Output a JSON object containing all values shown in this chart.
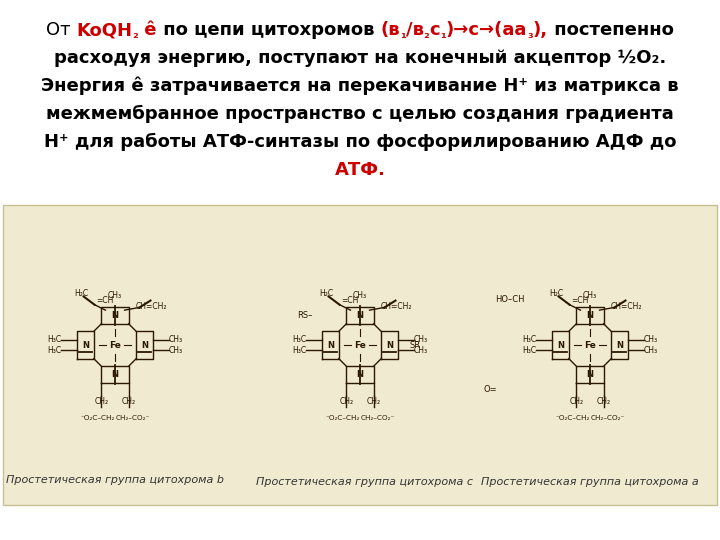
{
  "background_color": "#ffffff",
  "image_bg_color": "#f0ead0",
  "caption_b": "Простетическая группа цитохрома b",
  "caption_c": "Простетическая группа цитохрома c",
  "caption_a": "Простетическая группа цитохрома a",
  "text_fontsize": 13.0,
  "cap_fontsize": 8.0,
  "line1_black1": "От ",
  "line1_red1": "KoQH",
  "line1_red_sub2": "2",
  "line1_red2": " ê",
  "line1_black2": " по цепи цитохромов ",
  "line1_red3": "(в",
  "line1_red_sub1a": "1",
  "line1_red4": "/в",
  "line1_red_sub2a": "2",
  "line1_red5": "с",
  "line1_red_sub1b": "1",
  "line1_red6": ")→с→(аа",
  "line1_red_sub3": "3",
  "line1_red7": "),",
  "line1_black3": " постепенно",
  "line2": "расходуя энергию, поступают на конечный акцептор ½О",
  "line2_sub": "2",
  "line2_end": ".",
  "line3": "Энергия ê затрачивается на перекачивание Н",
  "line3_sup": "+",
  "line3_end": " из матрикса в",
  "line4": "межмембранное пространство с целью создания градиента",
  "line5": "Н",
  "line5_sup": "+",
  "line5_end": " для работы АТФ-синтазы по фосфорилированию АДФ до",
  "line6_red": "АТФ.",
  "black": "#000000",
  "red": "#cc0000",
  "dark": "#1a1a1a"
}
